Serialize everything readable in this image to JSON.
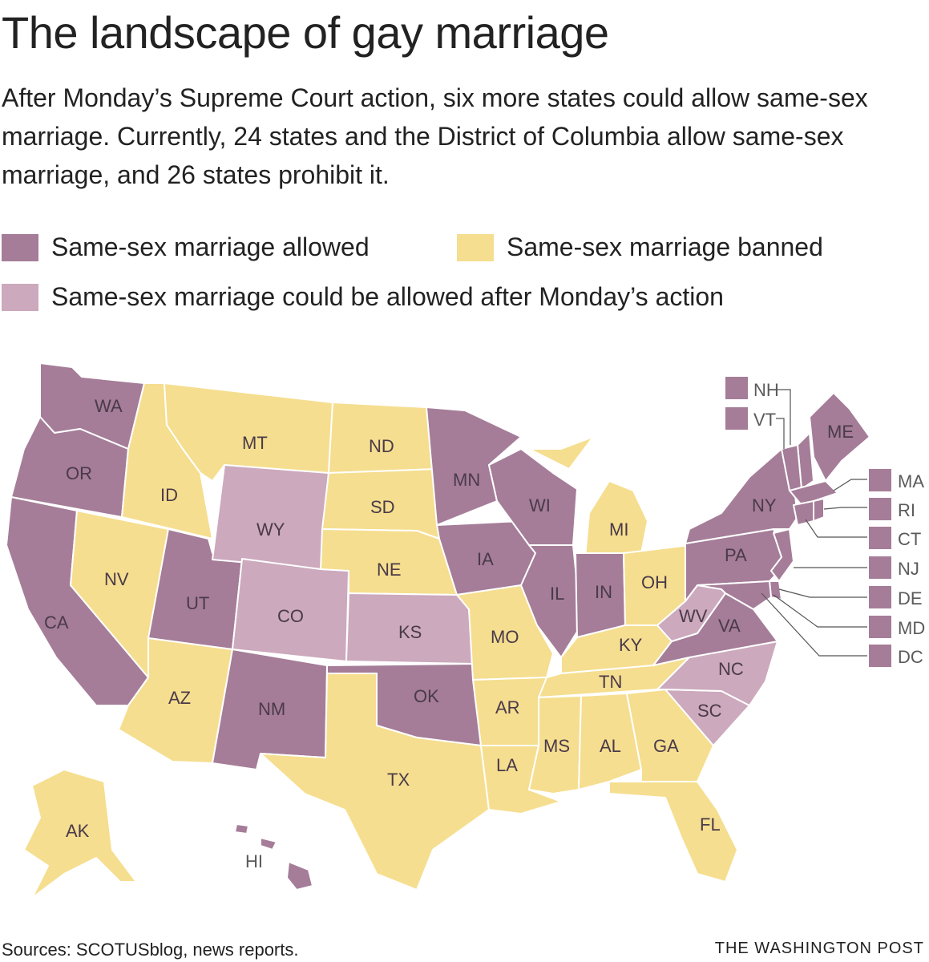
{
  "title": "The landscape of gay marriage",
  "subtitle": "After Monday’s Supreme Court action, six more states could allow same-sex marriage. Currently, 24 states and the District of Columbia allow same-sex marriage, and 26 states prohibit it.",
  "legend": {
    "allowed": "Same-sex marriage allowed",
    "banned": "Same-sex marriage banned",
    "could": "Same-sex marriage could be allowed after Monday’s action"
  },
  "colors": {
    "allowed": "#a57d98",
    "banned": "#f5de8f",
    "could": "#cca9bd"
  },
  "states": {
    "WA": {
      "label": "WA",
      "status": "allowed"
    },
    "OR": {
      "label": "OR",
      "status": "allowed"
    },
    "CA": {
      "label": "CA",
      "status": "allowed"
    },
    "ID": {
      "label": "ID",
      "status": "banned"
    },
    "NV": {
      "label": "NV",
      "status": "banned"
    },
    "UT": {
      "label": "UT",
      "status": "allowed"
    },
    "AZ": {
      "label": "AZ",
      "status": "banned"
    },
    "MT": {
      "label": "MT",
      "status": "banned"
    },
    "WY": {
      "label": "WY",
      "status": "could"
    },
    "CO": {
      "label": "CO",
      "status": "could"
    },
    "NM": {
      "label": "NM",
      "status": "allowed"
    },
    "ND": {
      "label": "ND",
      "status": "banned"
    },
    "SD": {
      "label": "SD",
      "status": "banned"
    },
    "NE": {
      "label": "NE",
      "status": "banned"
    },
    "KS": {
      "label": "KS",
      "status": "could"
    },
    "OK": {
      "label": "OK",
      "status": "allowed"
    },
    "TX": {
      "label": "TX",
      "status": "banned"
    },
    "MN": {
      "label": "MN",
      "status": "allowed"
    },
    "IA": {
      "label": "IA",
      "status": "allowed"
    },
    "MO": {
      "label": "MO",
      "status": "banned"
    },
    "AR": {
      "label": "AR",
      "status": "banned"
    },
    "LA": {
      "label": "LA",
      "status": "banned"
    },
    "WI": {
      "label": "WI",
      "status": "allowed"
    },
    "IL": {
      "label": "IL",
      "status": "allowed"
    },
    "MI": {
      "label": "MI",
      "status": "banned"
    },
    "IN": {
      "label": "IN",
      "status": "allowed"
    },
    "OH": {
      "label": "OH",
      "status": "banned"
    },
    "KY": {
      "label": "KY",
      "status": "banned"
    },
    "TN": {
      "label": "TN",
      "status": "banned"
    },
    "MS": {
      "label": "MS",
      "status": "banned"
    },
    "AL": {
      "label": "AL",
      "status": "banned"
    },
    "GA": {
      "label": "GA",
      "status": "banned"
    },
    "FL": {
      "label": "FL",
      "status": "banned"
    },
    "SC": {
      "label": "SC",
      "status": "could"
    },
    "NC": {
      "label": "NC",
      "status": "could"
    },
    "VA": {
      "label": "VA",
      "status": "allowed"
    },
    "WV": {
      "label": "WV",
      "status": "could"
    },
    "PA": {
      "label": "PA",
      "status": "allowed"
    },
    "NY": {
      "label": "NY",
      "status": "allowed"
    },
    "ME": {
      "label": "ME",
      "status": "allowed"
    },
    "AK": {
      "label": "AK",
      "status": "banned"
    },
    "HI": {
      "label": "HI",
      "status": "allowed"
    }
  },
  "small_states": {
    "NH": {
      "label": "NH",
      "status": "allowed"
    },
    "VT": {
      "label": "VT",
      "status": "allowed"
    },
    "MA": {
      "label": "MA",
      "status": "allowed"
    },
    "RI": {
      "label": "RI",
      "status": "allowed"
    },
    "CT": {
      "label": "CT",
      "status": "allowed"
    },
    "NJ": {
      "label": "NJ",
      "status": "allowed"
    },
    "DE": {
      "label": "DE",
      "status": "allowed"
    },
    "MD": {
      "label": "MD",
      "status": "allowed"
    },
    "DC": {
      "label": "DC",
      "status": "allowed"
    }
  },
  "footer": {
    "source": "Sources: SCOTUSblog, news reports.",
    "credit": "THE WASHINGTON POST"
  }
}
